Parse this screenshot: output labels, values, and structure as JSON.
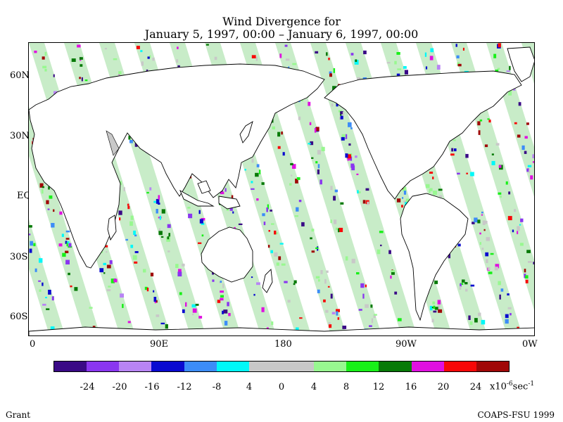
{
  "title": {
    "line1": "Wind Divergence for",
    "line2": "January 5, 1997, 00:00 – January 6, 1997, 00:00"
  },
  "axes": {
    "lat_labels": [
      "60N",
      "30N",
      "EQ",
      "30S",
      "60S"
    ],
    "lon_labels": [
      "0",
      "90E",
      "180",
      "90W",
      "0W"
    ]
  },
  "legend": {
    "colors": [
      "#3a0a86",
      "#8a36f0",
      "#b884f4",
      "#0a0ad0",
      "#3c8cf8",
      "#00f8f8",
      "#c8c8c8",
      "#c8c8c8",
      "#98f890",
      "#18f018",
      "#087a08",
      "#e010e0",
      "#f80808",
      "#a00808"
    ],
    "labels": [
      "-24",
      "-20",
      "-16",
      "-12",
      "-8",
      "4",
      "0",
      "4",
      "8",
      "12",
      "16",
      "20",
      "24"
    ],
    "unit_base": "x10",
    "unit_exp": "-6",
    "unit_tail": "sec",
    "unit_exp2": "-1"
  },
  "credits": {
    "left": "Grant",
    "right": "COAPS-FSU 1999"
  }
}
